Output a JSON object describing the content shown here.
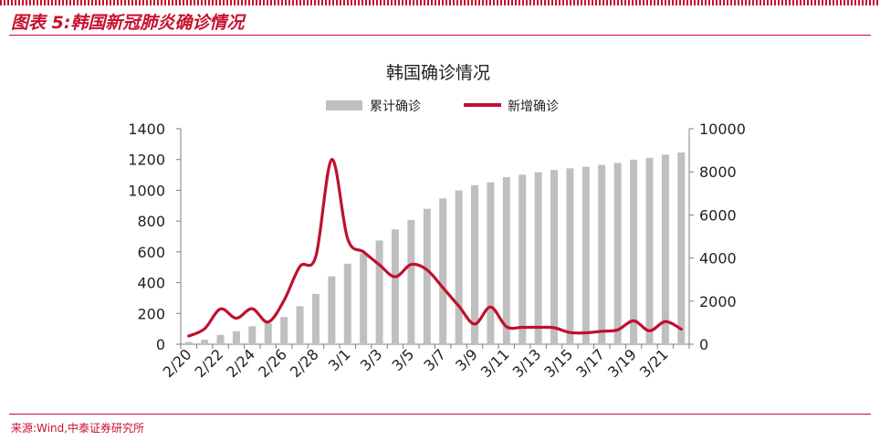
{
  "header": {
    "title": "图表 5:韩国新冠肺炎确诊情况"
  },
  "footer": {
    "source": "来源:Wind,中泰证券研究所"
  },
  "colors": {
    "accent": "#c8102e",
    "bar": "#bfbfbf",
    "line": "#c0102e"
  },
  "chart_data": {
    "type": "bar+line",
    "title": "韩国确诊情况",
    "legend_position": "top",
    "categories": [
      "2/20",
      "2/21",
      "2/22",
      "2/23",
      "2/24",
      "2/25",
      "2/26",
      "2/27",
      "2/28",
      "2/29",
      "3/1",
      "3/2",
      "3/3",
      "3/4",
      "3/5",
      "3/6",
      "3/7",
      "3/8",
      "3/9",
      "3/10",
      "3/11",
      "3/12",
      "3/13",
      "3/14",
      "3/15",
      "3/16",
      "3/17",
      "3/18",
      "3/19",
      "3/20",
      "3/21",
      "3/22"
    ],
    "x_tick_labels": [
      "2/20",
      "2/22",
      "2/24",
      "2/26",
      "2/28",
      "3/1",
      "3/3",
      "3/5",
      "3/7",
      "3/9",
      "3/11",
      "3/13",
      "3/15",
      "3/17",
      "3/19",
      "3/21"
    ],
    "series": [
      {
        "name": "累计确诊",
        "type": "bar",
        "axis": "right",
        "values": [
          104,
          204,
          433,
          602,
          833,
          977,
          1261,
          1766,
          2337,
          3150,
          3736,
          4212,
          4812,
          5328,
          5766,
          6284,
          6767,
          7134,
          7382,
          7513,
          7755,
          7869,
          7979,
          8086,
          8162,
          8236,
          8320,
          8413,
          8565,
          8652,
          8799,
          8897
        ]
      },
      {
        "name": "新增确诊",
        "type": "line",
        "axis": "left",
        "values": [
          53,
          100,
          229,
          169,
          231,
          144,
          284,
          505,
          571,
          1200,
          686,
          600,
          516,
          438,
          518,
          483,
          367,
          248,
          131,
          242,
          114,
          110,
          110,
          107,
          76,
          74,
          84,
          93,
          152,
          87,
          147,
          98
        ]
      }
    ],
    "y_left": {
      "range": [
        0,
        1400
      ],
      "ticks": [
        0,
        200,
        400,
        600,
        800,
        1000,
        1200,
        1400
      ]
    },
    "y_right": {
      "range": [
        0,
        10000
      ],
      "ticks": [
        0,
        2000,
        4000,
        6000,
        8000,
        10000
      ]
    },
    "grid": false
  }
}
